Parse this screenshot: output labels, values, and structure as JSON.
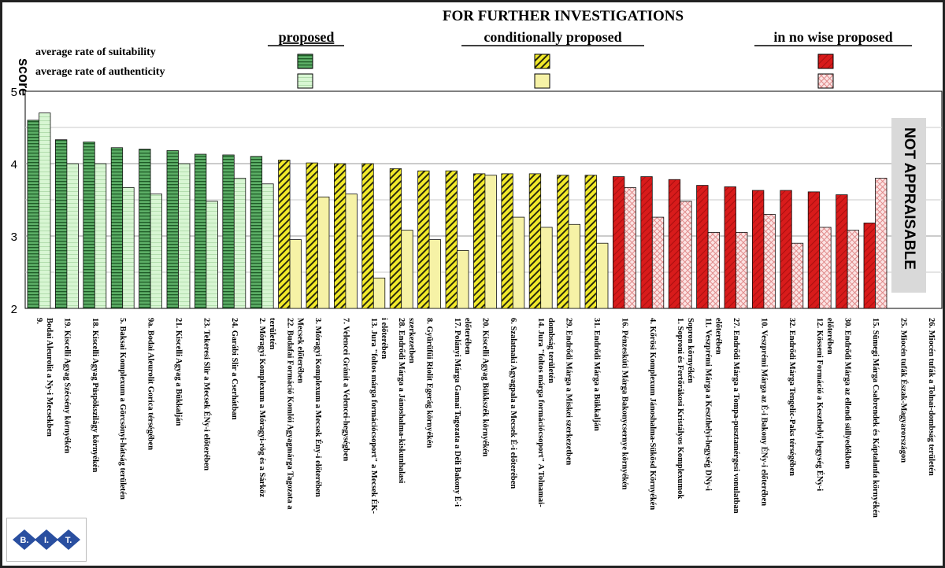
{
  "chart_data": {
    "type": "bar",
    "title": "FOR FURTHER INVESTIGATIONS",
    "ylabel": "score",
    "ylim": [
      2,
      5
    ],
    "yticks": [
      2,
      3,
      4,
      5
    ],
    "grid": true,
    "group_labels": [
      "proposed",
      "conditionally proposed",
      "in no wise proposed"
    ],
    "legend_rows": [
      "average rate of suitability",
      "average rate of authenticity"
    ],
    "not_appraisable_label": "NOT APPRAISABLE",
    "colors": {
      "proposed_suitability": "#5cae66",
      "proposed_authenticity": "#d3f5cf",
      "conditional_suitability": "#f2ea2a",
      "conditional_authenticity": "#f6f2a6",
      "rejected_suitability": "#d81b1b",
      "rejected_authenticity": "#f7d3d3"
    },
    "series": [
      {
        "name": "average rate of suitability",
        "values": [
          4.6,
          4.33,
          4.3,
          4.22,
          4.2,
          4.18,
          4.13,
          4.12,
          4.1,
          4.05,
          4.01,
          4.0,
          4.0,
          3.93,
          3.9,
          3.9,
          3.86,
          3.86,
          3.86,
          3.84,
          3.84,
          3.82,
          3.82,
          3.78,
          3.7,
          3.68,
          3.63,
          3.63,
          3.61,
          3.57,
          3.18,
          null,
          null
        ]
      },
      {
        "name": "average rate of authenticity",
        "values": [
          4.7,
          4.0,
          4.0,
          3.67,
          3.58,
          4.0,
          3.48,
          3.8,
          3.72,
          2.95,
          3.54,
          3.58,
          2.42,
          3.08,
          2.95,
          2.8,
          3.84,
          3.26,
          3.12,
          3.16,
          2.9,
          3.67,
          3.26,
          3.48,
          3.05,
          3.05,
          3.3,
          2.9,
          3.12,
          3.08,
          3.8,
          null,
          null
        ]
      }
    ],
    "groups": [
      "proposed",
      "proposed",
      "proposed",
      "proposed",
      "proposed",
      "proposed",
      "proposed",
      "proposed",
      "proposed",
      "conditional",
      "conditional",
      "conditional",
      "conditional",
      "conditional",
      "conditional",
      "conditional",
      "conditional",
      "conditional",
      "conditional",
      "conditional",
      "conditional",
      "rejected",
      "rejected",
      "rejected",
      "rejected",
      "rejected",
      "rejected",
      "rejected",
      "rejected",
      "rejected",
      "rejected",
      "none",
      "none"
    ],
    "categories": [
      [
        "9.",
        "Bodai Aleurolit a Ny-i Mecsekben"
      ],
      [
        "19. Kiscelli Agyag Szécsény környékén"
      ],
      [
        "18. Kiscelli Agyag Püspökszilágy környékén"
      ],
      [
        "5. Baksai Komplexum a Görcsönyi-hátság területén"
      ],
      [
        "9a. Bodai Aleurolit Gorica térségében"
      ],
      [
        "21. Kiscelli Agyag a Bükkalján"
      ],
      [
        "23. Tekeresi Slir a Mecsek ÉNy-i előterében"
      ],
      [
        "24. Garábi Slir a Cserhátban"
      ],
      [
        "2. Móragyi Komplexum a Móragyi-rög és a Sárköz",
        "területén"
      ],
      [
        "22. Budafai Formáció Komlói Agyagmárga Tagozata a",
        "Mecsek előterében"
      ],
      [
        "3. Móragyi Komplexum a Mecsek Ény-i előterében"
      ],
      [
        "7. Velencei Gránit a Velencei-hegységben"
      ],
      [
        "13. Jura \"foltos márga formációcsoport\" a Mecsek ÉK-",
        "i előterében"
      ],
      [
        "28. Endrődi Márga a Jánoshalma-kiskunhalasi",
        "szerkezetben"
      ],
      [
        "8. Gyűrűfűi Riolit Egerág környékén"
      ],
      [
        "17. Polányi Márga Gamai Tagozata a Déli Bakony É-i",
        "előterében"
      ],
      [
        "20. Kiscelli Agyag Bükkszék környékén"
      ],
      [
        "6. Szalatnaki Agyagpala a Mecsek É-i előterében"
      ],
      [
        "14. Jura \"foltos márga formációcsoport\" A Tolnamai-",
        "dombság területén"
      ],
      [
        "29. Endrődi Márga a Miskei szerkezetben"
      ],
      [
        "31. Endrődi Márga a Bükkalján"
      ],
      [
        "16. Pénzeskúti Márga Bakonycsernye környékén"
      ],
      [
        "4. Kőrösi Komplexum Jánoshalma-Sükösd Környékén"
      ],
      [
        "1. Soproni és Fertőrákosi Kristályos Komplexumok",
        "Sopron környékén"
      ],
      [
        "11. Veszprémi Márga a Keszthelyi-hegység DNy-i",
        "előterében"
      ],
      [
        "27. Endrődi Márga a Tompa-pusztamérgesi vonulatban"
      ],
      [
        "10. Veszprémi Márga az É-i Bakony ÉNy-i előterében"
      ],
      [
        "32. Endrődi Márga Tengelic-Paks térségében"
      ],
      [
        "12. Kösseni Formáció a Keszthelyi hegység ÉNy-i",
        "előterében"
      ],
      [
        "30. Endrődi Márga az ellendi süllyedékben"
      ],
      [
        "15. Sümegi Márga Csabrendek és Káptalanfa környékén"
      ],
      [
        "25. Miocén tufák Észak-Magyarországon"
      ],
      [
        "26. Miocén tufák a Tolnai-dombság területén"
      ]
    ]
  },
  "logo": {
    "text": "B.I.T."
  }
}
